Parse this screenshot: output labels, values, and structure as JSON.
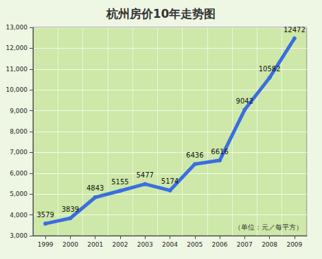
{
  "chart_data": {
    "type": "line",
    "title": "杭州房价10年走势图",
    "categories": [
      "1999",
      "2000",
      "2001",
      "2002",
      "2003",
      "2004",
      "2005",
      "2006",
      "2007",
      "2008",
      "2009"
    ],
    "values": [
      3579,
      3839,
      4843,
      5155,
      5477,
      5174,
      6436,
      6616,
      9042,
      10582,
      12472
    ],
    "color": "#3a6ee0",
    "ylim": [
      3000,
      13000
    ],
    "yticks": [
      3000,
      4000,
      5000,
      6000,
      7000,
      8000,
      9000,
      10000,
      11000,
      12000,
      13000
    ],
    "grid": true,
    "data_labels": true,
    "marker": "circle",
    "annotations": [
      "（单位：元／每平方）"
    ]
  }
}
